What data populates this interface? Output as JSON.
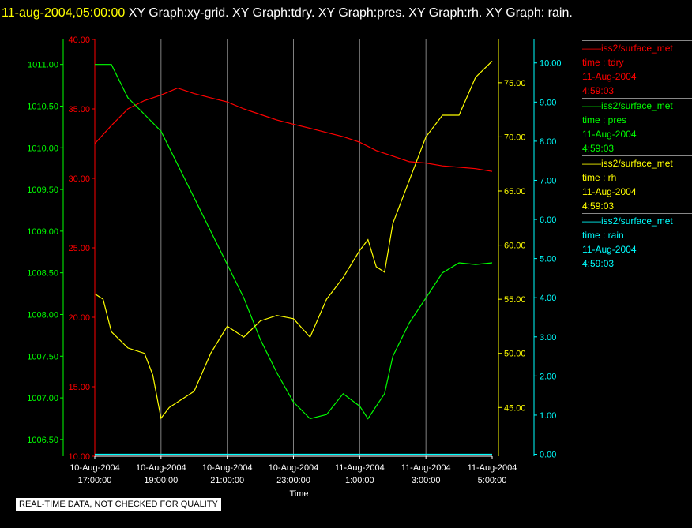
{
  "header": {
    "stamp": "11-aug-2004,05:00:00",
    "text": "XY Graph:xy-grid.  XY Graph:tdry.  XY Graph:pres.  XY Graph:rh.  XY Graph: rain."
  },
  "footer_badge": "REAL-TIME DATA, NOT CHECKED FOR QUALITY",
  "colors": {
    "tdry": "#ff0000",
    "pres": "#00ff00",
    "rh": "#ffff00",
    "rain": "#00ffff",
    "grid": "#808080"
  },
  "chart_data": {
    "type": "line",
    "xlabel": "Time",
    "x_ticks": [
      [
        "10-Aug-2004",
        "17:00:00"
      ],
      [
        "10-Aug-2004",
        "19:00:00"
      ],
      [
        "10-Aug-2004",
        "21:00:00"
      ],
      [
        "10-Aug-2004",
        "23:00:00"
      ],
      [
        "11-Aug-2004",
        "1:00:00"
      ],
      [
        "11-Aug-2004",
        "3:00:00"
      ],
      [
        "11-Aug-2004",
        "5:00:00"
      ]
    ],
    "x_range_hours": [
      0,
      12
    ],
    "axes": {
      "pres": {
        "ylim": [
          1006.3,
          1011.3
        ],
        "ticks": [
          1006.5,
          1007.0,
          1007.5,
          1008.0,
          1008.5,
          1009.0,
          1009.5,
          1010.0,
          1010.5,
          1011.0
        ]
      },
      "tdry": {
        "ylim": [
          10,
          40
        ],
        "ticks": [
          10,
          15,
          20,
          25,
          30,
          35,
          40
        ]
      },
      "rh": {
        "ylim": [
          40.5,
          79.0
        ],
        "ticks": [
          45,
          50,
          55,
          60,
          65,
          70,
          75
        ]
      },
      "rain": {
        "ylim": [
          -0.05,
          10.6
        ],
        "ticks": [
          0,
          1,
          2,
          3,
          4,
          5,
          6,
          7,
          8,
          9,
          10
        ]
      }
    },
    "series": [
      {
        "name": "tdry",
        "axis": "tdry",
        "x": [
          0,
          0.5,
          1,
          1.5,
          2,
          2.5,
          3,
          3.5,
          4,
          4.5,
          5,
          5.5,
          6,
          6.5,
          7,
          7.5,
          8,
          8.5,
          9,
          9.5,
          10,
          10.5,
          11,
          11.5,
          12
        ],
        "y": [
          32.5,
          33.8,
          35.0,
          35.6,
          36.0,
          36.5,
          36.1,
          35.8,
          35.5,
          35.0,
          34.6,
          34.2,
          33.9,
          33.6,
          33.3,
          33.0,
          32.6,
          32.0,
          31.6,
          31.2,
          31.1,
          30.9,
          30.8,
          30.7,
          30.5
        ]
      },
      {
        "name": "pres",
        "axis": "pres",
        "x": [
          0,
          0.5,
          1,
          1.5,
          2,
          2.5,
          3,
          3.5,
          4,
          4.5,
          5,
          5.5,
          6,
          6.5,
          7,
          7.5,
          8,
          8.25,
          8.5,
          8.75,
          9,
          9.5,
          10,
          10.5,
          11,
          11.5,
          12
        ],
        "y": [
          1011.0,
          1011.0,
          1010.6,
          1010.4,
          1010.2,
          1009.8,
          1009.4,
          1009.0,
          1008.6,
          1008.2,
          1007.7,
          1007.3,
          1006.95,
          1006.75,
          1006.8,
          1007.05,
          1006.9,
          1006.75,
          1006.9,
          1007.05,
          1007.5,
          1007.9,
          1008.2,
          1008.5,
          1008.62,
          1008.6,
          1008.62
        ]
      },
      {
        "name": "rh",
        "axis": "rh",
        "x": [
          0,
          0.25,
          0.5,
          1,
          1.5,
          1.75,
          2,
          2.25,
          2.5,
          3,
          3.5,
          4,
          4.5,
          5,
          5.5,
          6,
          6.5,
          7,
          7.5,
          8,
          8.25,
          8.5,
          8.75,
          9,
          9.5,
          10,
          10.5,
          11,
          11.5,
          12
        ],
        "y": [
          55.5,
          55.0,
          52.0,
          50.5,
          50.0,
          48.0,
          44.0,
          45.0,
          45.5,
          46.5,
          50.0,
          52.5,
          51.5,
          53.0,
          53.5,
          53.2,
          51.5,
          55.0,
          57.0,
          59.5,
          60.5,
          58.0,
          57.5,
          62.0,
          66.0,
          70.0,
          72.0,
          72.0,
          75.5,
          77.0
        ]
      },
      {
        "name": "rain",
        "axis": "rain",
        "x": [
          0,
          12
        ],
        "y": [
          0,
          0
        ]
      }
    ]
  },
  "legend": [
    {
      "key": "tdry",
      "lines": [
        "iss2/surface_met",
        "time : tdry",
        "11-Aug-2004",
        "4:59:03"
      ]
    },
    {
      "key": "pres",
      "lines": [
        "iss2/surface_met",
        "time : pres",
        "11-Aug-2004",
        "4:59:03"
      ]
    },
    {
      "key": "rh",
      "lines": [
        "iss2/surface_met",
        "time : rh",
        "11-Aug-2004",
        "4:59:03"
      ]
    },
    {
      "key": "rain",
      "lines": [
        "iss2/surface_met",
        "time : rain",
        "11-Aug-2004",
        "4:59:03"
      ]
    }
  ]
}
